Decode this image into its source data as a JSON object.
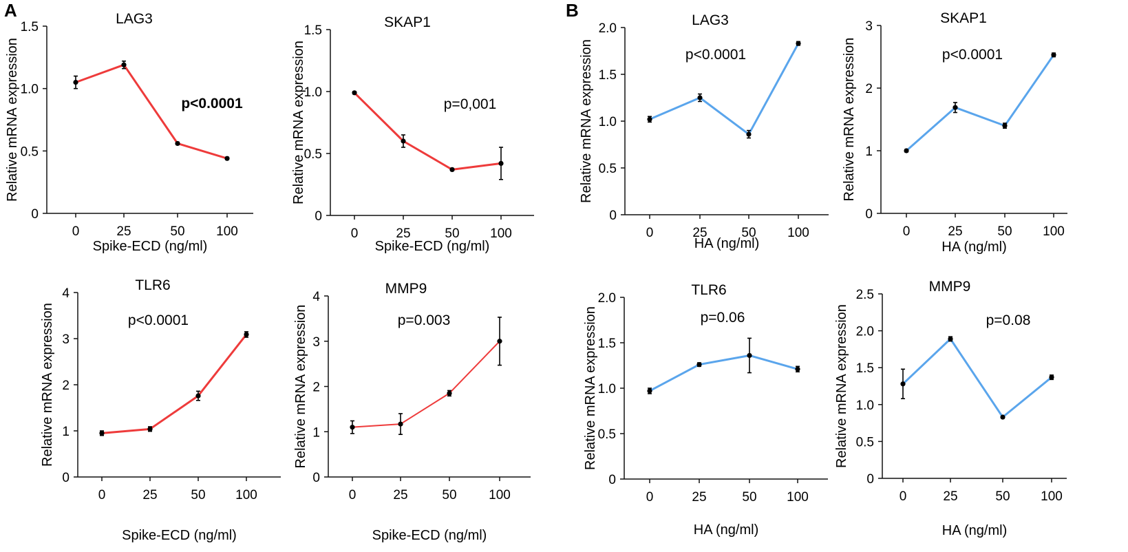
{
  "panels": [
    {
      "letter": "A"
    },
    {
      "letter": "B"
    }
  ],
  "colors": {
    "spike_line": "#ee3b3b",
    "ha_line": "#5aa5ec",
    "axis": "#111111",
    "marker": "#000000"
  },
  "chart_data": [
    {
      "type": "line",
      "panel": "A",
      "title": "LAG3",
      "annotation": "p<0.0001",
      "annotation_bold": true,
      "xlabel": "Spike-ECD (ng/ml)",
      "ylabel": "Relative mRNA expression",
      "categories": [
        "0",
        "25",
        "50",
        "100"
      ],
      "values": [
        1.05,
        1.19,
        0.56,
        0.44
      ],
      "errors": [
        0.05,
        0.03,
        0.01,
        0.01
      ],
      "ylim": [
        0,
        1.5
      ],
      "yticks": [
        "0",
        "0.5",
        "1.0",
        "1.5"
      ],
      "ytick_values": [
        0,
        0.5,
        1.0,
        1.5
      ],
      "color": "#ee3b3b",
      "line_width": 3
    },
    {
      "type": "line",
      "panel": "A",
      "title": "SKAP1",
      "annotation": "p=0,001",
      "annotation_bold": false,
      "xlabel": "Spike-ECD (ng/ml)",
      "ylabel": "Relative mRNA expression",
      "categories": [
        "0",
        "25",
        "50",
        "100"
      ],
      "values": [
        0.99,
        0.6,
        0.37,
        0.42
      ],
      "errors": [
        0.01,
        0.05,
        0.01,
        0.13
      ],
      "ylim": [
        0,
        1.5
      ],
      "yticks": [
        "0",
        "0.5",
        "1.0",
        "1.5"
      ],
      "ytick_values": [
        0,
        0.5,
        1.0,
        1.5
      ],
      "color": "#ee3b3b",
      "line_width": 3
    },
    {
      "type": "line",
      "panel": "A",
      "title": "TLR6",
      "annotation": "p<0.0001",
      "annotation_bold": false,
      "xlabel": "Spike-ECD (ng/ml)",
      "ylabel": "Relative mRNA expression",
      "categories": [
        "0",
        "25",
        "50",
        "100"
      ],
      "values": [
        0.95,
        1.04,
        1.76,
        3.09
      ],
      "errors": [
        0.05,
        0.05,
        0.1,
        0.06
      ],
      "ylim": [
        0,
        4
      ],
      "yticks": [
        "0",
        "1",
        "2",
        "3",
        "4"
      ],
      "ytick_values": [
        0,
        1,
        2,
        3,
        4
      ],
      "color": "#ee3b3b",
      "line_width": 3
    },
    {
      "type": "line",
      "panel": "A",
      "title": "MMP9",
      "annotation": "p=0.003",
      "annotation_bold": false,
      "xlabel": "Spike-ECD (ng/ml)",
      "ylabel": "Relative mRNA expression",
      "categories": [
        "0",
        "25",
        "50",
        "100"
      ],
      "values": [
        1.1,
        1.17,
        1.85,
        3.0
      ],
      "errors": [
        0.14,
        0.23,
        0.06,
        0.53
      ],
      "ylim": [
        0,
        4
      ],
      "yticks": [
        "0",
        "1",
        "2",
        "3",
        "4"
      ],
      "ytick_values": [
        0,
        1,
        2,
        3,
        4
      ],
      "color": "#ee3b3b",
      "line_width": 2
    },
    {
      "type": "line",
      "panel": "B",
      "title": "LAG3",
      "annotation": "p<0.0001",
      "annotation_bold": false,
      "xlabel": "HA (ng/ml)",
      "ylabel": "Relative mRNA expression",
      "categories": [
        "0",
        "25",
        "50",
        "100"
      ],
      "values": [
        1.02,
        1.25,
        0.86,
        1.83
      ],
      "errors": [
        0.03,
        0.04,
        0.04,
        0.02
      ],
      "ylim": [
        0,
        2.0
      ],
      "yticks": [
        "0",
        "0.5",
        "1.0",
        "1.5",
        "2.0"
      ],
      "ytick_values": [
        0,
        0.5,
        1.0,
        1.5,
        2.0
      ],
      "color": "#5aa5ec",
      "line_width": 3
    },
    {
      "type": "line",
      "panel": "B",
      "title": "SKAP1",
      "annotation": "p<0.0001",
      "annotation_bold": false,
      "xlabel": "HA (ng/ml)",
      "ylabel": "Relative mRNA expression",
      "categories": [
        "0",
        "25",
        "50",
        "100"
      ],
      "values": [
        1.0,
        1.69,
        1.4,
        2.53
      ],
      "errors": [
        0.02,
        0.08,
        0.04,
        0.03
      ],
      "ylim": [
        0,
        3
      ],
      "yticks": [
        "0",
        "1",
        "2",
        "3"
      ],
      "ytick_values": [
        0,
        1,
        2,
        3
      ],
      "color": "#5aa5ec",
      "line_width": 3
    },
    {
      "type": "line",
      "panel": "B",
      "title": "TLR6",
      "annotation": "p=0.06",
      "annotation_bold": false,
      "xlabel": "HA (ng/ml)",
      "ylabel": "Relative mRNA expression",
      "categories": [
        "0",
        "25",
        "50",
        "100"
      ],
      "values": [
        0.97,
        1.26,
        1.36,
        1.21
      ],
      "errors": [
        0.03,
        0.02,
        0.19,
        0.03
      ],
      "ylim": [
        0,
        2.0
      ],
      "yticks": [
        "0",
        "0.5",
        "1.0",
        "1.5",
        "2.0"
      ],
      "ytick_values": [
        0,
        0.5,
        1.0,
        1.5,
        2.0
      ],
      "color": "#5aa5ec",
      "line_width": 3
    },
    {
      "type": "line",
      "panel": "B",
      "title": "MMP9",
      "annotation": "p=0.08",
      "annotation_bold": false,
      "xlabel": "HA (ng/ml)",
      "ylabel": "Relative mRNA expression",
      "categories": [
        "0",
        "25",
        "50",
        "100"
      ],
      "values": [
        1.28,
        1.89,
        0.83,
        1.37
      ],
      "errors": [
        0.2,
        0.03,
        0.01,
        0.03
      ],
      "ylim": [
        0,
        2.5
      ],
      "yticks": [
        "0",
        "0.5",
        "1.0",
        "1.5",
        "2.0",
        "2.5"
      ],
      "ytick_values": [
        0,
        0.5,
        1.0,
        1.5,
        2.0,
        2.5
      ],
      "color": "#5aa5ec",
      "line_width": 3
    }
  ]
}
